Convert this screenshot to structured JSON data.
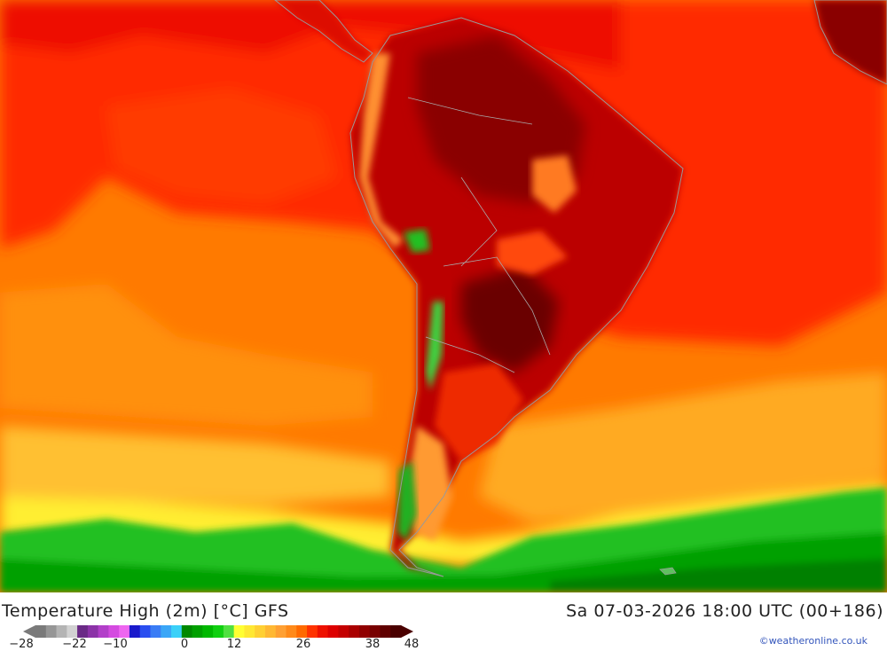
{
  "map": {
    "title": "Temperature High (2m) [°C] GFS",
    "valid_time": "Sa 07-03-2026 18:00 UTC (00+186)",
    "credit": "©weatheronline.co.uk",
    "legend": {
      "colors": [
        "#7a7a7a",
        "#969696",
        "#b4b4b4",
        "#d2d2d2",
        "#6a2a86",
        "#8c33a8",
        "#b23fc9",
        "#d44be0",
        "#ee66f0",
        "#1a1acc",
        "#2a4ef0",
        "#3a7cf5",
        "#3aa6f7",
        "#3ad0f8",
        "#008800",
        "#00a000",
        "#00b800",
        "#10d010",
        "#50e040",
        "#ffff33",
        "#ffe833",
        "#ffd033",
        "#ffb833",
        "#ffa033",
        "#ff8a1a",
        "#ff6a00",
        "#ff3300",
        "#ee1100",
        "#dd0000",
        "#c40000",
        "#aa0000",
        "#900000",
        "#780000",
        "#600000",
        "#4a0000"
      ],
      "tick_labels": [
        {
          "label": "−28"
        },
        {
          "label": "−22"
        },
        {
          "label": "−10"
        },
        {
          "label": "0"
        },
        {
          "label": "12"
        },
        {
          "label": "26"
        },
        {
          "label": "38"
        },
        {
          "label": "48"
        }
      ]
    }
  }
}
